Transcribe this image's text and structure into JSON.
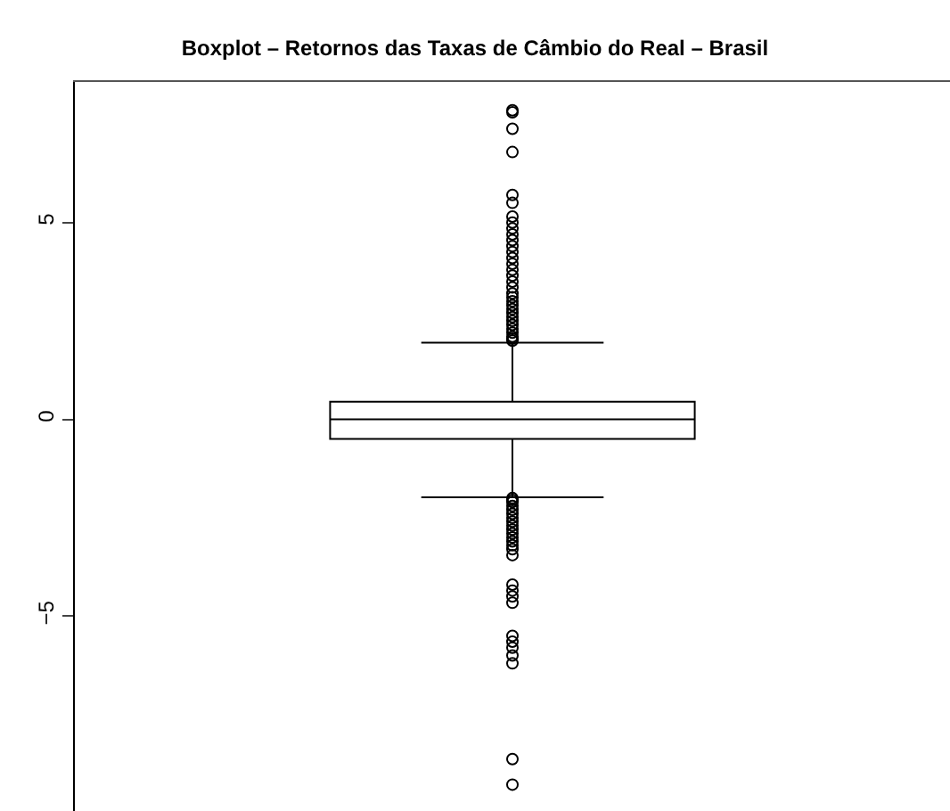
{
  "chart_data": {
    "type": "box",
    "title": "Boxplot – Retornos das Taxas de Câmbio do Real – Brasil",
    "categories": [
      null
    ],
    "boxes": [
      {
        "low": -1.98,
        "q1": -0.5,
        "median": 0,
        "q3": 0.45,
        "high": 1.95,
        "outliers": [
          7.85,
          7.8,
          7.38,
          6.79,
          5.7,
          5.5,
          5.15,
          5.0,
          4.85,
          4.7,
          4.55,
          4.4,
          4.25,
          4.1,
          3.95,
          3.8,
          3.65,
          3.5,
          3.35,
          3.2,
          3.1,
          3.0,
          2.9,
          2.8,
          2.7,
          2.6,
          2.5,
          2.4,
          2.3,
          2.2,
          2.1,
          2.05,
          2.0,
          -2.0,
          -2.05,
          -2.1,
          -2.2,
          -2.3,
          -2.4,
          -2.5,
          -2.6,
          -2.7,
          -2.8,
          -2.9,
          -3.0,
          -3.1,
          -3.2,
          -3.3,
          -3.45,
          -4.2,
          -4.35,
          -4.5,
          -4.66,
          -5.5,
          -5.65,
          -5.8,
          -6.0,
          -6.2,
          -8.63,
          -9.28
        ]
      }
    ],
    "color": "#000000",
    "ylim": [
      -9.95,
      8.57
    ],
    "yticks": [
      -5,
      0,
      5
    ],
    "grid": false,
    "tick_labels": "y",
    "marker": "circle"
  }
}
